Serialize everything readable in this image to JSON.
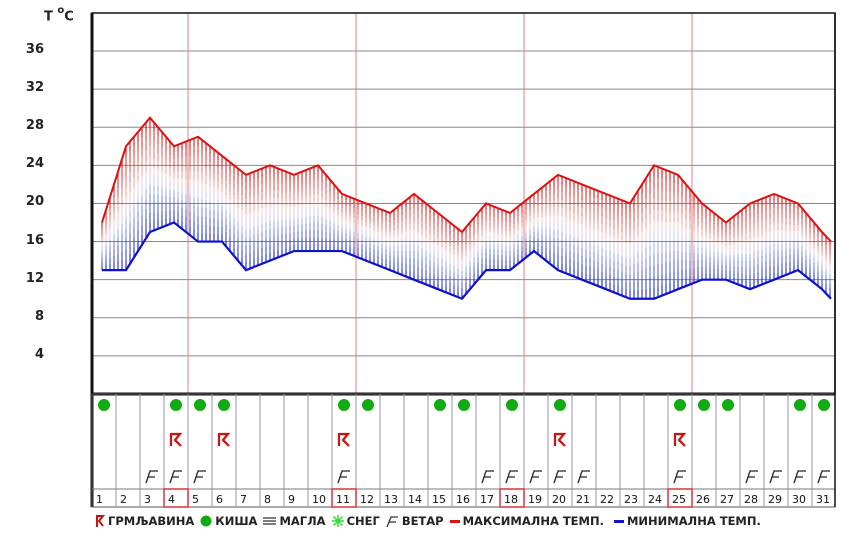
{
  "chart_data": {
    "type": "area",
    "title": "",
    "ylabel": "T °C",
    "xlabel": "",
    "ylim": [
      0,
      40
    ],
    "yticks": [
      4,
      8,
      12,
      16,
      20,
      24,
      28,
      32,
      36
    ],
    "grid": true,
    "categories": [
      "1",
      "2",
      "3",
      "4",
      "5",
      "6",
      "7",
      "8",
      "9",
      "10",
      "11",
      "12",
      "13",
      "14",
      "15",
      "16",
      "17",
      "18",
      "19",
      "20",
      "21",
      "22",
      "23",
      "24",
      "25",
      "26",
      "27",
      "28",
      "29",
      "30",
      "31"
    ],
    "series": [
      {
        "name": "МАКСИМАЛНА ТЕМП.",
        "color": "#dd1111",
        "values": [
          18,
          26,
          29,
          26,
          27,
          25,
          23,
          24,
          23,
          24,
          21,
          20,
          19,
          21,
          19,
          17,
          20,
          19,
          21,
          23,
          22,
          21,
          20,
          24,
          23,
          20,
          18,
          20,
          21,
          20,
          17
        ]
      },
      {
        "name": "МИНИМАЛНА ТЕМП.",
        "color": "#1111cc",
        "values": [
          13,
          13,
          17,
          18,
          16,
          16,
          13,
          14,
          15,
          15,
          15,
          14,
          13,
          12,
          11,
          10,
          13,
          13,
          15,
          13,
          12,
          11,
          10,
          10,
          11,
          12,
          12,
          11,
          12,
          13,
          11
        ]
      }
    ],
    "tail": {
      "max": 16,
      "min": 10
    },
    "highlighted_days": [
      4,
      11,
      18,
      25
    ],
    "events": {
      "rain": [
        1,
        4,
        5,
        6,
        11,
        12,
        15,
        16,
        18,
        20,
        25,
        26,
        27,
        30,
        31
      ],
      "thunderstorm": [
        4,
        6,
        11,
        20,
        25
      ],
      "wind": [
        3,
        4,
        5,
        11,
        17,
        18,
        19,
        20,
        21,
        25,
        28,
        29,
        30,
        31
      ],
      "fog": [],
      "snow": []
    },
    "legend_position": "bottom"
  },
  "axis": {
    "title_t": "T",
    "title_deg": "o",
    "title_c": "C",
    "ticks": [
      "36",
      "32",
      "28",
      "24",
      "20",
      "16",
      "12",
      "8",
      "4"
    ]
  },
  "legend": {
    "thunderstorm": "ГРМЉАВИНА",
    "rain": "КИША",
    "fog": "МАГЛА",
    "snow": "СНЕГ",
    "wind": "ВЕТАР",
    "max_temp": "МАКСИМАЛНА ТЕМП.",
    "min_temp": "МИНИМАЛНА ТЕМП."
  },
  "colors": {
    "max_line": "#dd1111",
    "min_line": "#1111cc",
    "rain": "#11aa11",
    "thunder": "#cc1111",
    "snow": "#33dd33",
    "week_line": "#e08080",
    "grid": "#888888"
  }
}
